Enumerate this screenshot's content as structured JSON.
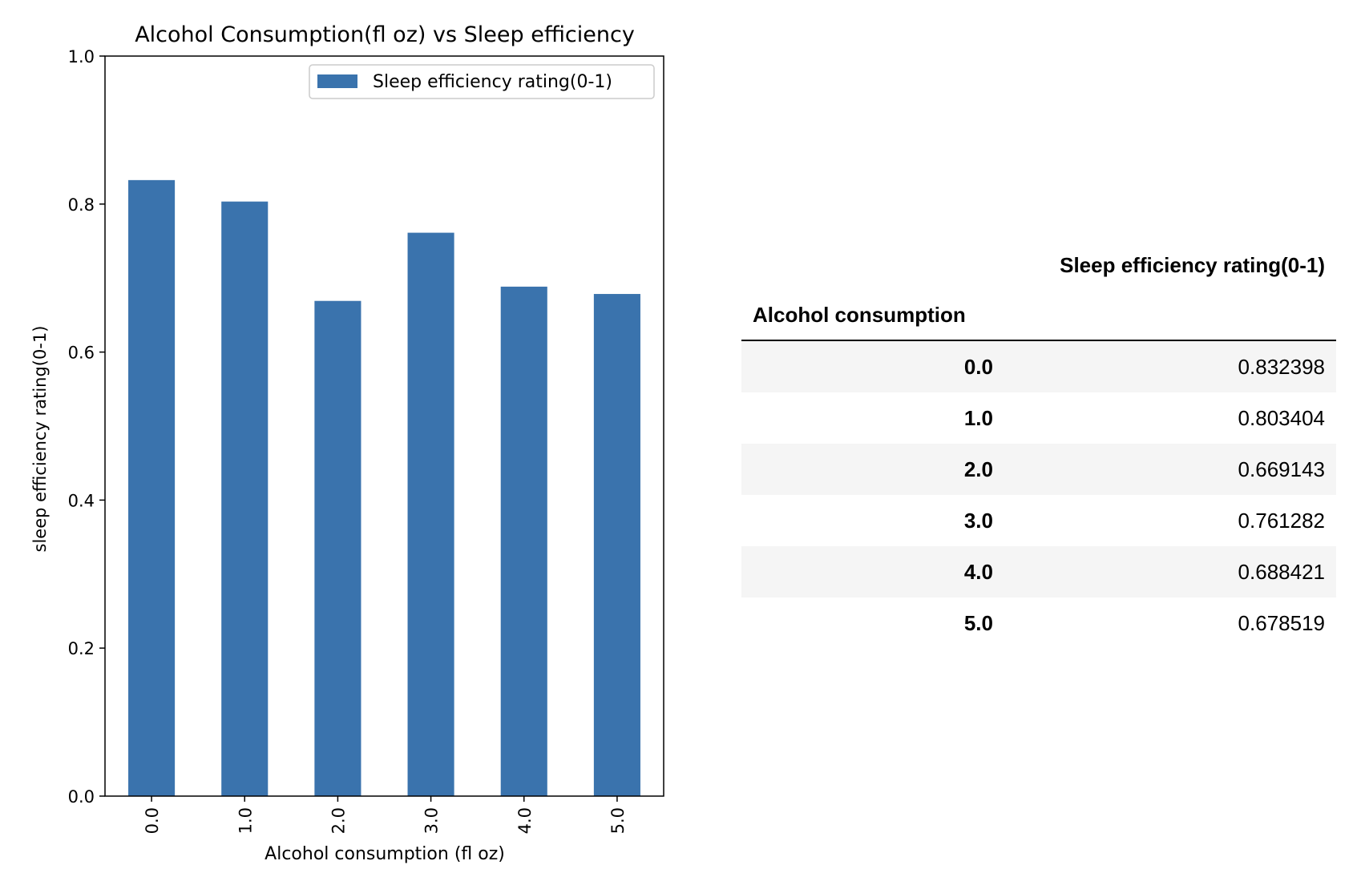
{
  "chart_data": {
    "type": "bar",
    "title": "Alcohol Consumption(fl oz) vs Sleep efficiency",
    "xlabel": "Alcohol consumption (fl oz)",
    "ylabel": "sleep efficiency rating(0-1)",
    "categories": [
      "0.0",
      "1.0",
      "2.0",
      "3.0",
      "4.0",
      "5.0"
    ],
    "series": [
      {
        "name": "Sleep efficiency rating(0-1)",
        "values": [
          0.832398,
          0.803404,
          0.669143,
          0.761282,
          0.688421,
          0.678519
        ],
        "color": "#3a73ad"
      }
    ],
    "ylim": [
      0,
      1.0
    ],
    "yticks": [
      "0.0",
      "0.2",
      "0.4",
      "0.6",
      "0.8",
      "1.0"
    ],
    "grid": false,
    "legend_position": "top-right"
  },
  "table": {
    "column_header": "Sleep efficiency rating(0-1)",
    "index_name": "Alcohol consumption",
    "rows": [
      {
        "index": "0.0",
        "value": "0.832398"
      },
      {
        "index": "1.0",
        "value": "0.803404"
      },
      {
        "index": "2.0",
        "value": "0.669143"
      },
      {
        "index": "3.0",
        "value": "0.761282"
      },
      {
        "index": "4.0",
        "value": "0.688421"
      },
      {
        "index": "5.0",
        "value": "0.678519"
      }
    ]
  }
}
